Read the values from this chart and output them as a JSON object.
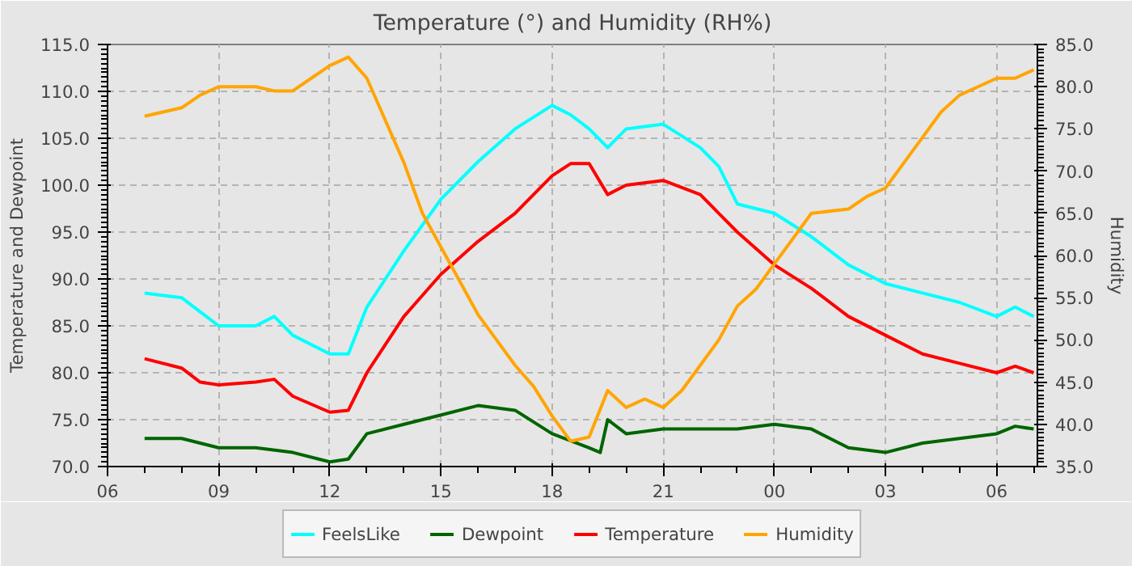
{
  "chart_data": {
    "type": "line",
    "title": "Temperature (°) and Humidity (RH%)",
    "ylabel": "Temperature and Dewpoint",
    "y2label": "Humidity",
    "xlim": [
      6,
      31.1
    ],
    "xticks": [
      {
        "value": 6,
        "label": "06"
      },
      {
        "value": 9,
        "label": "09"
      },
      {
        "value": 12,
        "label": "12"
      },
      {
        "value": 15,
        "label": "15"
      },
      {
        "value": 18,
        "label": "18"
      },
      {
        "value": 21,
        "label": "21"
      },
      {
        "value": 24,
        "label": "00"
      },
      {
        "value": 27,
        "label": "03"
      },
      {
        "value": 30,
        "label": "06"
      }
    ],
    "ylim": [
      70,
      115
    ],
    "yticks": [
      {
        "value": 70,
        "label": "70.0"
      },
      {
        "value": 75,
        "label": "75.0"
      },
      {
        "value": 80,
        "label": "80.0"
      },
      {
        "value": 85,
        "label": "85.0"
      },
      {
        "value": 90,
        "label": "90.0"
      },
      {
        "value": 95,
        "label": "95.0"
      },
      {
        "value": 100,
        "label": "100.0"
      },
      {
        "value": 105,
        "label": "105.0"
      },
      {
        "value": 110,
        "label": "110.0"
      },
      {
        "value": 115,
        "label": "115.0"
      }
    ],
    "y2lim": [
      35,
      85
    ],
    "y2ticks": [
      {
        "value": 35,
        "label": "35.0"
      },
      {
        "value": 40,
        "label": "40.0"
      },
      {
        "value": 45,
        "label": "45.0"
      },
      {
        "value": 50,
        "label": "50.0"
      },
      {
        "value": 55,
        "label": "55.0"
      },
      {
        "value": 60,
        "label": "60.0"
      },
      {
        "value": 65,
        "label": "65.0"
      },
      {
        "value": 70,
        "label": "70.0"
      },
      {
        "value": 75,
        "label": "75.0"
      },
      {
        "value": 80,
        "label": "80.0"
      },
      {
        "value": 85,
        "label": "85.0"
      }
    ],
    "grid": true,
    "legend": "bottom",
    "line_style": "solid",
    "marker": "none",
    "series": [
      {
        "name": "FeelsLike",
        "color": "#00ffff",
        "x": [
          7,
          8,
          8.5,
          9,
          10,
          10.5,
          11,
          12,
          12.5,
          13,
          13.5,
          14,
          15,
          16,
          17,
          18,
          18.5,
          19,
          19.5,
          20,
          21,
          22,
          22.5,
          23,
          24,
          25,
          26,
          27,
          28,
          29,
          30,
          30.5,
          31
        ],
        "values": [
          88.5,
          88,
          86.5,
          85,
          85,
          86,
          84,
          82,
          82,
          87,
          90,
          93,
          98.5,
          102.5,
          106,
          108.5,
          107.5,
          106,
          104,
          106,
          106.5,
          104,
          102,
          98,
          97,
          94.5,
          91.5,
          89.5,
          88.5,
          87.5,
          86,
          87,
          86
        ]
      },
      {
        "name": "Dewpoint",
        "color": "#006400",
        "x": [
          7,
          8,
          9,
          10,
          11,
          12,
          12.5,
          13,
          14,
          15,
          16,
          17,
          18,
          19,
          19.3,
          19.5,
          20,
          21,
          22,
          23,
          24,
          25,
          26,
          27,
          28,
          29,
          30,
          30.5,
          31
        ],
        "values": [
          73,
          73,
          72,
          72,
          71.5,
          70.5,
          70.8,
          73.5,
          74.5,
          75.5,
          76.5,
          76,
          73.5,
          72,
          71.5,
          75,
          73.5,
          74,
          74,
          74,
          74.5,
          74,
          72,
          71.5,
          72.5,
          73,
          73.5,
          74.3,
          74
        ]
      },
      {
        "name": "Temperature",
        "color": "#ff0000",
        "x": [
          7,
          8,
          8.5,
          9,
          10,
          10.5,
          11,
          12,
          12.5,
          13,
          13.5,
          14,
          15,
          16,
          17,
          18,
          18.5,
          19,
          19.5,
          20,
          21,
          22,
          22.5,
          23,
          24,
          25,
          26,
          27,
          28,
          29,
          30,
          30.5,
          31
        ],
        "values": [
          81.5,
          80.5,
          79,
          78.7,
          79,
          79.3,
          77.5,
          75.8,
          76,
          80,
          83,
          86,
          90.5,
          94,
          97,
          101,
          102.3,
          102.3,
          99,
          100,
          100.5,
          99,
          97,
          95,
          91.5,
          89,
          86,
          84,
          82,
          81,
          80,
          80.7,
          80
        ]
      },
      {
        "name": "Humidity",
        "color": "#ffa500",
        "axis": "y2",
        "x": [
          7,
          7.5,
          8,
          8.5,
          9,
          10,
          10.5,
          11,
          11.5,
          12,
          12.5,
          13,
          13.5,
          14,
          14.5,
          15,
          15.5,
          16,
          16.5,
          17,
          17.5,
          18,
          18.5,
          19,
          19.5,
          20,
          20.5,
          21,
          21.5,
          22,
          22.5,
          23,
          23.5,
          24,
          24.5,
          25,
          26,
          26.5,
          27,
          27.5,
          28,
          28.5,
          29,
          29.5,
          30,
          30.5,
          31
        ],
        "values": [
          76.5,
          77,
          77.5,
          79,
          80,
          80,
          79.5,
          79.5,
          81,
          82.5,
          83.5,
          81,
          76,
          71,
          65,
          61,
          57,
          53,
          50,
          47,
          44.5,
          41,
          38,
          38.5,
          44,
          42,
          43,
          42,
          44,
          47,
          50,
          54,
          56,
          59,
          62,
          65,
          65.5,
          67,
          68,
          71,
          74,
          77,
          79,
          80,
          81,
          81,
          82
        ]
      }
    ]
  }
}
